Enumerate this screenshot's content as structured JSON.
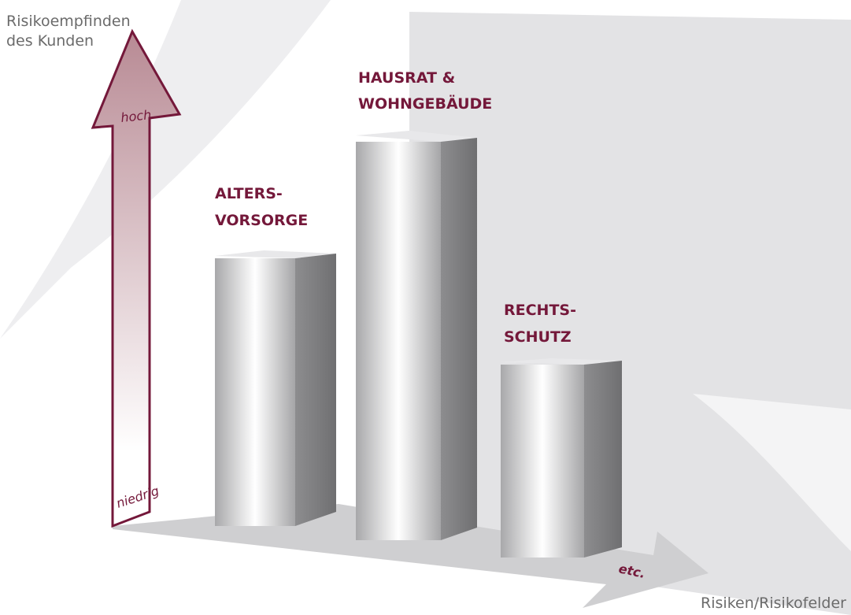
{
  "y_axis": {
    "label_lines": [
      "Risikoempfinden",
      "des Kunden"
    ],
    "high": "hoch",
    "low": "niedrig"
  },
  "bars": [
    {
      "label_lines": [
        "ALTERS-",
        "VORSORGE"
      ]
    },
    {
      "label_lines": [
        "HAUSRAT &",
        "WOHNGEBÄUDE"
      ]
    },
    {
      "label_lines": [
        "RECHTS-",
        "SCHUTZ"
      ]
    }
  ],
  "x_axis": {
    "more": "etc.",
    "label": "Risiken/Risikofelder"
  }
}
